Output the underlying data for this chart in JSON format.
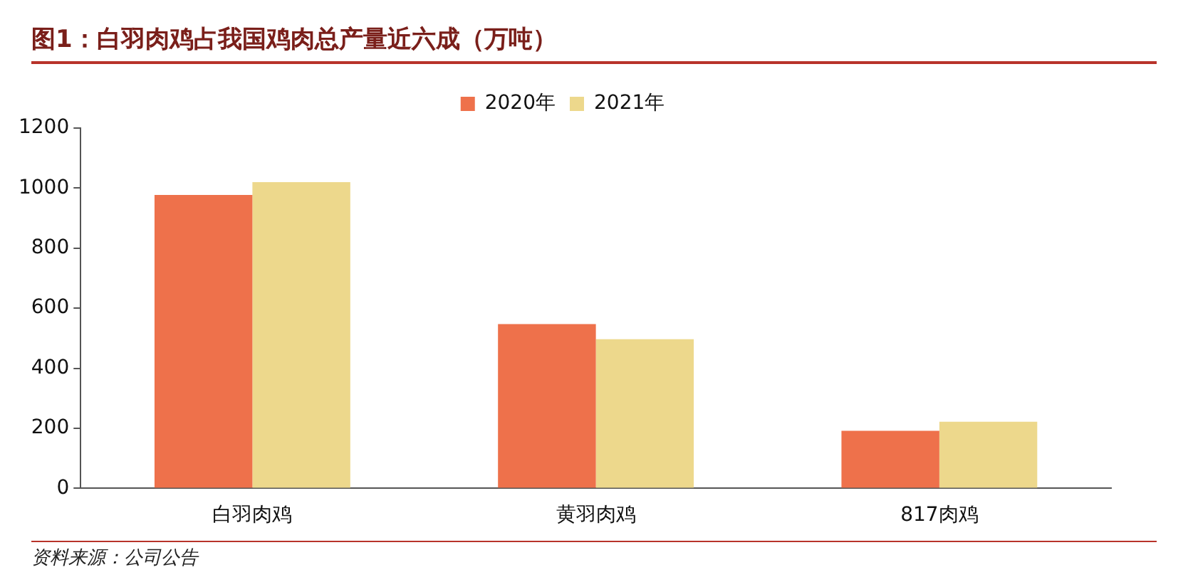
{
  "chart_data": {
    "type": "bar",
    "title": "图1：白羽肉鸡占我国鸡肉总产量近六成（万吨）",
    "categories": [
      "白羽肉鸡",
      "黄羽肉鸡",
      "817肉鸡"
    ],
    "series": [
      {
        "name": "2020年",
        "color": "#ee714b",
        "values": [
          977,
          547,
          192
        ]
      },
      {
        "name": "2021年",
        "color": "#edd88c",
        "values": [
          1020,
          497,
          222
        ]
      }
    ],
    "ylim": [
      0,
      1200
    ],
    "yticks": [
      0,
      200,
      400,
      600,
      800,
      1000,
      1200
    ],
    "grid": false,
    "legend": "top",
    "annotations": [
      "资料来源：公司公告"
    ]
  }
}
